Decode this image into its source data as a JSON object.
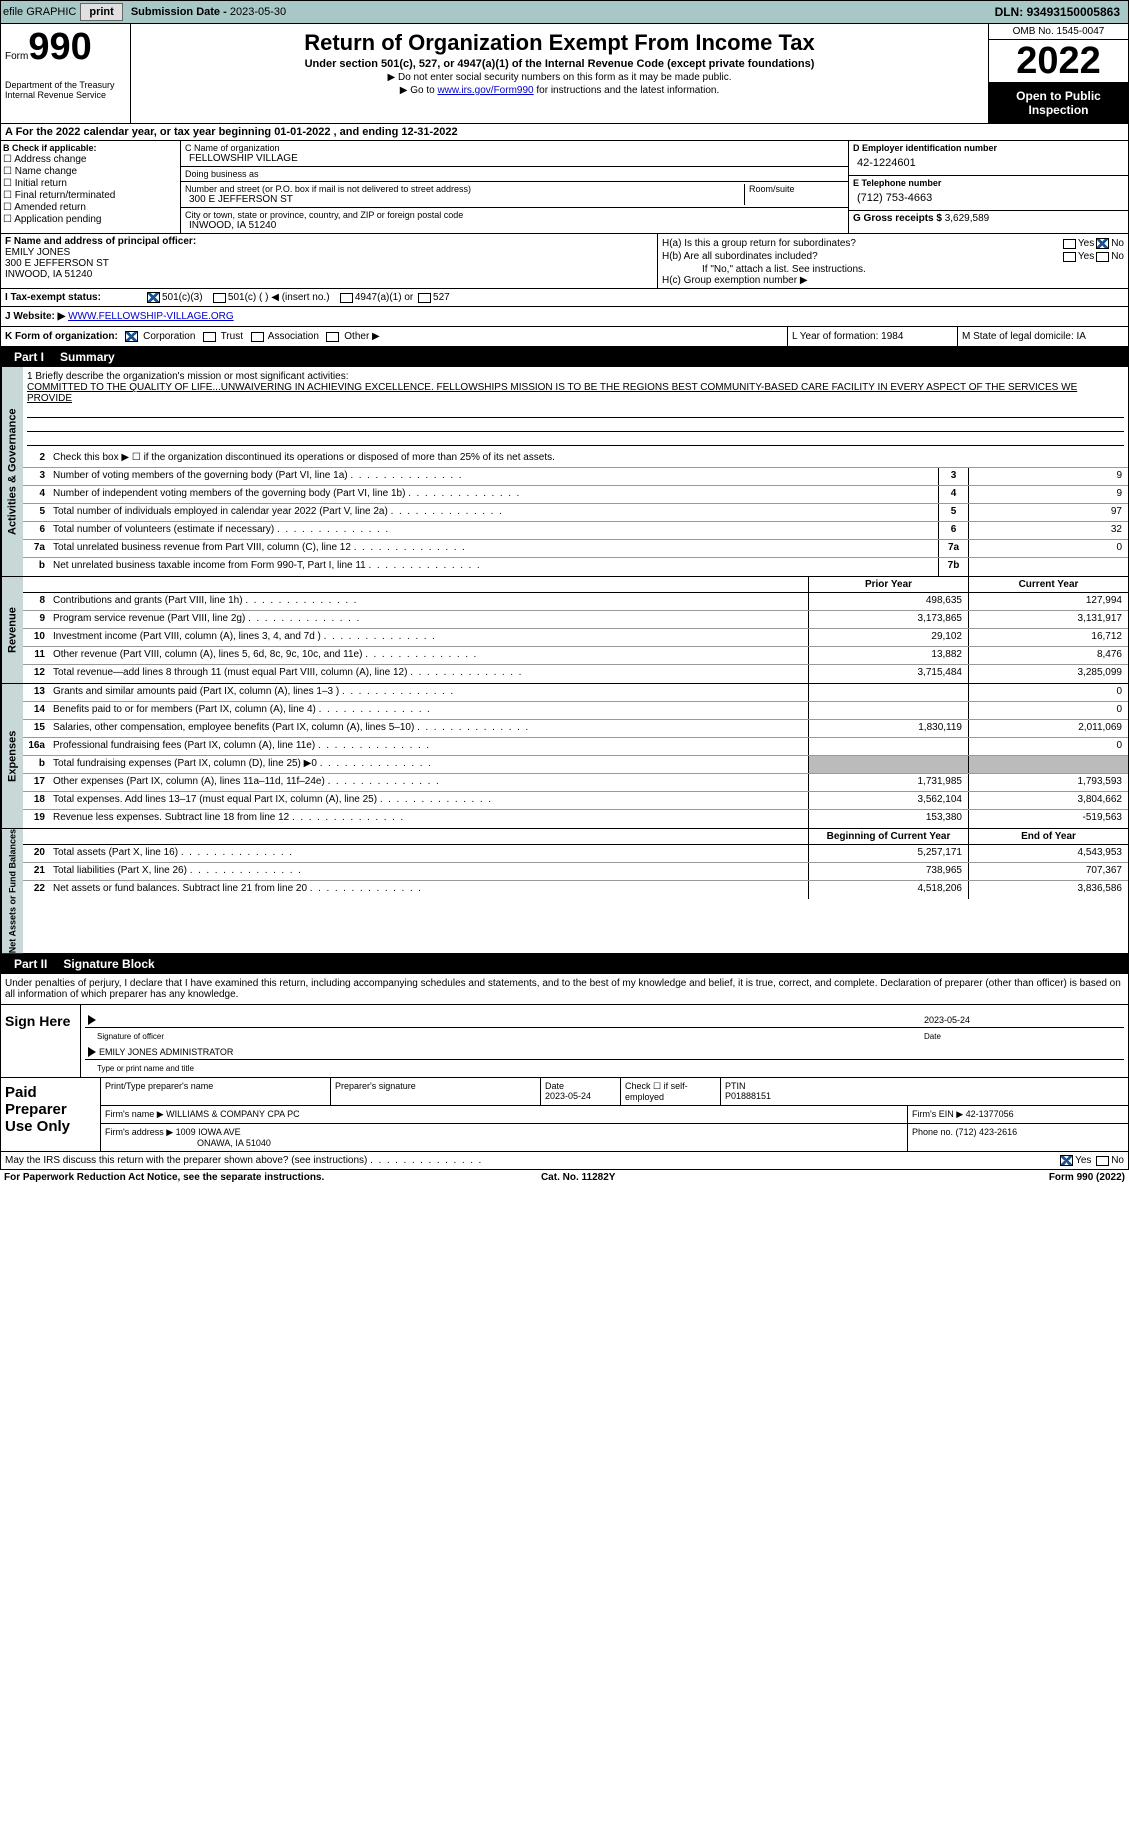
{
  "topbar": {
    "efile": "efile GRAPHIC",
    "print": "print",
    "subdate_lbl": "Submission Date - ",
    "subdate": "2023-05-30",
    "dln_lbl": "DLN: ",
    "dln": "93493150005863"
  },
  "hdr": {
    "form": "Form",
    "num": "990",
    "dept": "Department of the Treasury\nInternal Revenue Service",
    "title": "Return of Organization Exempt From Income Tax",
    "sub": "Under section 501(c), 527, or 4947(a)(1) of the Internal Revenue Code (except private foundations)",
    "note1": "▶ Do not enter social security numbers on this form as it may be made public.",
    "note2_pre": "▶ Go to ",
    "note2_link": "www.irs.gov/Form990",
    "note2_post": " for instructions and the latest information.",
    "omb": "OMB No. 1545-0047",
    "year": "2022",
    "open": "Open to Public Inspection"
  },
  "A": {
    "text": "A For the 2022 calendar year, or tax year beginning 01-01-2022    , and ending 12-31-2022"
  },
  "B": {
    "hdr": "B Check if applicable:",
    "items": [
      "Address change",
      "Name change",
      "Initial return",
      "Final return/terminated",
      "Amended return",
      "Application pending"
    ]
  },
  "C": {
    "name_lbl": "C Name of organization",
    "name": "FELLOWSHIP VILLAGE",
    "dba_lbl": "Doing business as",
    "dba": "",
    "addr_lbl": "Number and street (or P.O. box if mail is not delivered to street address)",
    "addr": "300 E JEFFERSON ST",
    "room_lbl": "Room/suite",
    "city_lbl": "City or town, state or province, country, and ZIP or foreign postal code",
    "city": "INWOOD, IA  51240"
  },
  "D": {
    "lbl": "D Employer identification number",
    "val": "42-1224601"
  },
  "E": {
    "lbl": "E Telephone number",
    "val": "(712) 753-4663"
  },
  "G": {
    "lbl": "G Gross receipts $ ",
    "val": "3,629,589"
  },
  "F": {
    "lbl": "F  Name and address of principal officer:",
    "name": "EMILY JONES",
    "addr1": "300 E JEFFERSON ST",
    "addr2": "INWOOD, IA  51240"
  },
  "H": {
    "a": "H(a)  Is this a group return for subordinates?",
    "b": "H(b)  Are all subordinates included?",
    "bnote": "If \"No,\" attach a list. See instructions.",
    "c": "H(c)  Group exemption number ▶",
    "yes": "Yes",
    "no": "No"
  },
  "I": {
    "lbl": "I    Tax-exempt status:",
    "o1": "501(c)(3)",
    "o2": "501(c) (  ) ◀ (insert no.)",
    "o3": "4947(a)(1) or",
    "o4": "527"
  },
  "J": {
    "lbl": "J   Website: ▶  ",
    "val": "WWW.FELLOWSHIP-VILLAGE.ORG"
  },
  "K": {
    "lbl": "K Form of organization:",
    "o1": "Corporation",
    "o2": "Trust",
    "o3": "Association",
    "o4": "Other ▶",
    "L": "L Year of formation: 1984",
    "M": "M State of legal domicile: IA"
  },
  "part1": {
    "hdr": "Part I",
    "title": "Summary"
  },
  "summary": {
    "l1_lbl": "1  Briefly describe the organization's mission or most significant activities:",
    "l1": "COMMITTED TO THE QUALITY OF LIFE...UNWAIVERING IN ACHIEVING EXCELLENCE. FELLOWSHIPS MISSION IS TO BE THE REGIONS BEST COMMUNITY-BASED CARE FACILITY IN EVERY ASPECT OF THE SERVICES WE PROVIDE",
    "l2": "Check this box ▶ ☐  if the organization discontinued its operations or disposed of more than 25% of its net assets.",
    "rows": [
      {
        "n": "3",
        "t": "Number of voting members of the governing body (Part VI, line 1a)",
        "bn": "3",
        "v": "9"
      },
      {
        "n": "4",
        "t": "Number of independent voting members of the governing body (Part VI, line 1b)",
        "bn": "4",
        "v": "9"
      },
      {
        "n": "5",
        "t": "Total number of individuals employed in calendar year 2022 (Part V, line 2a)",
        "bn": "5",
        "v": "97"
      },
      {
        "n": "6",
        "t": "Total number of volunteers (estimate if necessary)",
        "bn": "6",
        "v": "32"
      },
      {
        "n": "7a",
        "t": "Total unrelated business revenue from Part VIII, column (C), line 12",
        "bn": "7a",
        "v": "0"
      },
      {
        "n": "b",
        "t": "Net unrelated business taxable income from Form 990-T, Part I, line 11",
        "bn": "7b",
        "v": ""
      }
    ]
  },
  "rev": {
    "tab": "Activities & Governance",
    "tab2": "Revenue",
    "tab3": "Expenses",
    "tab4": "Net Assets or Fund Balances",
    "hdr_prior": "Prior Year",
    "hdr_curr": "Current Year",
    "rows": [
      {
        "n": "8",
        "t": "Contributions and grants (Part VIII, line 1h)",
        "p": "498,635",
        "c": "127,994"
      },
      {
        "n": "9",
        "t": "Program service revenue (Part VIII, line 2g)",
        "p": "3,173,865",
        "c": "3,131,917"
      },
      {
        "n": "10",
        "t": "Investment income (Part VIII, column (A), lines 3, 4, and 7d )",
        "p": "29,102",
        "c": "16,712"
      },
      {
        "n": "11",
        "t": "Other revenue (Part VIII, column (A), lines 5, 6d, 8c, 9c, 10c, and 11e)",
        "p": "13,882",
        "c": "8,476"
      },
      {
        "n": "12",
        "t": "Total revenue—add lines 8 through 11 (must equal Part VIII, column (A), line 12)",
        "p": "3,715,484",
        "c": "3,285,099"
      }
    ]
  },
  "exp": {
    "rows": [
      {
        "n": "13",
        "t": "Grants and similar amounts paid (Part IX, column (A), lines 1–3 )",
        "p": "",
        "c": "0"
      },
      {
        "n": "14",
        "t": "Benefits paid to or for members (Part IX, column (A), line 4)",
        "p": "",
        "c": "0"
      },
      {
        "n": "15",
        "t": "Salaries, other compensation, employee benefits (Part IX, column (A), lines 5–10)",
        "p": "1,830,119",
        "c": "2,011,069"
      },
      {
        "n": "16a",
        "t": "Professional fundraising fees (Part IX, column (A), line 11e)",
        "p": "",
        "c": "0"
      },
      {
        "n": "b",
        "t": "Total fundraising expenses (Part IX, column (D), line 25) ▶0",
        "p": "",
        "c": "",
        "gray": true
      },
      {
        "n": "17",
        "t": "Other expenses (Part IX, column (A), lines 11a–11d, 11f–24e)",
        "p": "1,731,985",
        "c": "1,793,593"
      },
      {
        "n": "18",
        "t": "Total expenses. Add lines 13–17 (must equal Part IX, column (A), line 25)",
        "p": "3,562,104",
        "c": "3,804,662"
      },
      {
        "n": "19",
        "t": "Revenue less expenses. Subtract line 18 from line 12",
        "p": "153,380",
        "c": "-519,563"
      }
    ]
  },
  "net": {
    "hdr_beg": "Beginning of Current Year",
    "hdr_end": "End of Year",
    "rows": [
      {
        "n": "20",
        "t": "Total assets (Part X, line 16)",
        "p": "5,257,171",
        "c": "4,543,953"
      },
      {
        "n": "21",
        "t": "Total liabilities (Part X, line 26)",
        "p": "738,965",
        "c": "707,367"
      },
      {
        "n": "22",
        "t": "Net assets or fund balances. Subtract line 21 from line 20",
        "p": "4,518,206",
        "c": "3,836,586"
      }
    ]
  },
  "part2": {
    "hdr": "Part II",
    "title": "Signature Block"
  },
  "sig": {
    "pen": "Under penalties of perjury, I declare that I have examined this return, including accompanying schedules and statements, and to the best of my knowledge and belief, it is true, correct, and complete. Declaration of preparer (other than officer) is based on all information of which preparer has any knowledge.",
    "sign_here": "Sign Here",
    "sig_off": "Signature of officer",
    "date": "Date",
    "date_v": "2023-05-24",
    "name": "EMILY JONES  ADMINISTRATOR",
    "name_lbl": "Type or print name and title"
  },
  "paid": {
    "lbl": "Paid Preparer Use Only",
    "r1": {
      "a": "Print/Type preparer's name",
      "b": "Preparer's signature",
      "c": "Date",
      "cv": "2023-05-24",
      "d": "Check ☐ if self-employed",
      "e": "PTIN",
      "ev": "P01888151"
    },
    "r2": {
      "a": "Firm's name      ▶ WILLIAMS & COMPANY CPA PC",
      "b": "Firm's EIN ▶ 42-1377056"
    },
    "r3": {
      "a": "Firm's address ▶ 1009 IOWA AVE",
      "a2": "ONAWA, IA  51040",
      "b": "Phone no. (712) 423-2616"
    }
  },
  "disc": {
    "q": "May the IRS discuss this return with the preparer shown above? (see instructions)",
    "yes": "Yes",
    "no": "No"
  },
  "foot": {
    "l": "For Paperwork Reduction Act Notice, see the separate instructions.",
    "c": "Cat. No. 11282Y",
    "r": "Form 990 (2022)"
  }
}
